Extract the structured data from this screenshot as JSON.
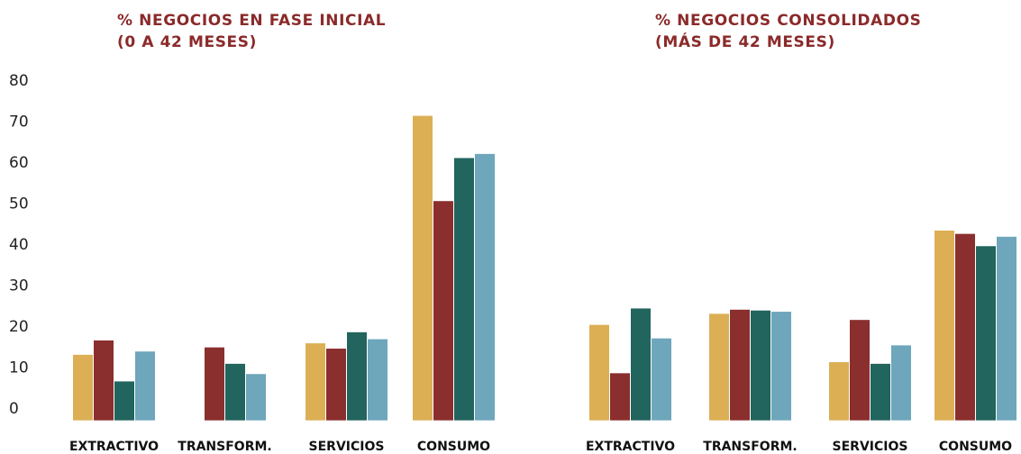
{
  "colors": [
    "#dcaf55",
    "#8b2e2e",
    "#22645e",
    "#6ea6bb"
  ],
  "chart_data": [
    {
      "type": "bar",
      "title_lines": [
        "% NEGOCIOS EN FASE INICIAL",
        "(0 A 42 MESES)"
      ],
      "categories": [
        "EXTRACTIVO",
        "TRANSFORM.",
        "SERVICIOS",
        "CONSUMO"
      ],
      "series": [
        {
          "values": [
            13,
            16.5,
            6.5,
            13.8
          ]
        },
        {
          "values": [
            null,
            14.8,
            10.8,
            8.3
          ]
        },
        {
          "values": [
            15.8,
            14.5,
            18.5,
            16.8
          ]
        },
        {
          "values": [
            71.3,
            50.5,
            61,
            62
          ]
        }
      ],
      "yticks": [
        0,
        10,
        20,
        30,
        40,
        50,
        60,
        70,
        80
      ],
      "ylim": [
        -3,
        80
      ]
    },
    {
      "type": "bar",
      "title_lines": [
        "% NEGOCIOS CONSOLIDADOS",
        "(MÁS DE 42 MESES)"
      ],
      "categories": [
        "EXTRACTIVO",
        "TRANSFORM.",
        "SERVICIOS",
        "CONSUMO"
      ],
      "series": [
        {
          "values": [
            20.3,
            8.5,
            24.3,
            17
          ]
        },
        {
          "values": [
            23,
            24,
            23.8,
            23.5
          ]
        },
        {
          "values": [
            11.2,
            21.5,
            10.8,
            15.3
          ]
        },
        {
          "values": [
            43.3,
            42.5,
            39.5,
            41.8
          ]
        }
      ],
      "ylim": [
        -3,
        80
      ]
    }
  ]
}
